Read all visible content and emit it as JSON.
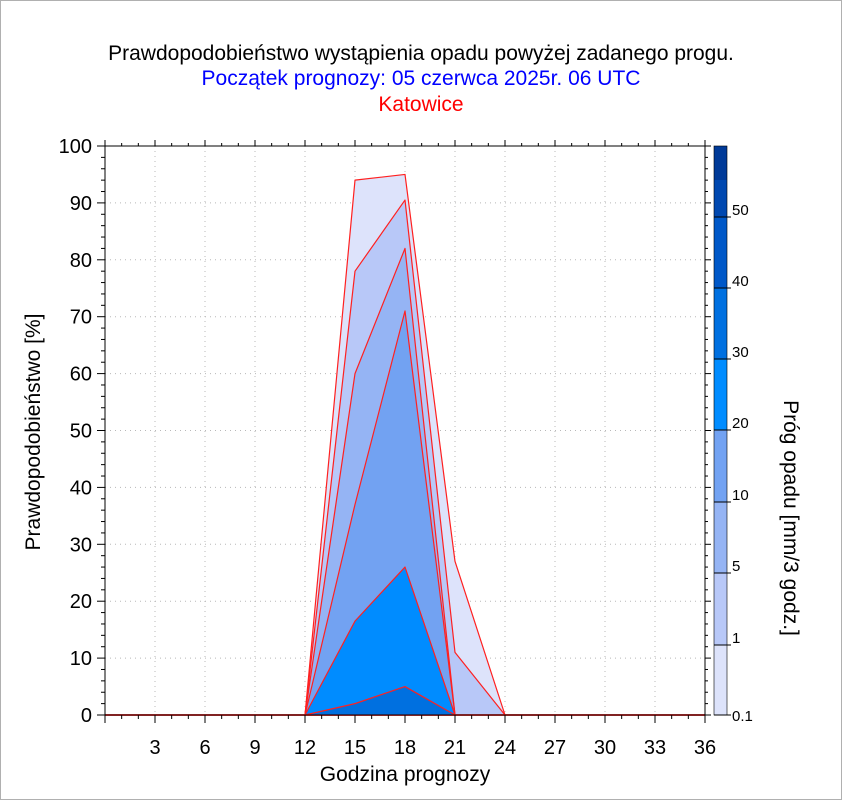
{
  "chart_data": {
    "type": "area",
    "title": "Prawdopodobieństwo wystąpienia opadu powyżej zadanego progu.",
    "subtitle": "Początek prognozy: 05 czerwca 2025r. 06 UTC",
    "location": "Katowice",
    "xlabel": "Godzina prognozy",
    "ylabel": "Prawdopodobieństwo [%]",
    "colorbar_label": "Próg opadu [mm/3 godz.]",
    "xlim": [
      0,
      36
    ],
    "ylim": [
      0,
      100
    ],
    "x_ticks": [
      "3",
      "6",
      "9",
      "12",
      "15",
      "18",
      "21",
      "24",
      "27",
      "30",
      "33",
      "36"
    ],
    "y_ticks": [
      "0",
      "10",
      "20",
      "30",
      "40",
      "50",
      "60",
      "70",
      "80",
      "90",
      "100"
    ],
    "colorbar_ticks": [
      "0.1",
      "1",
      "5",
      "10",
      "20",
      "30",
      "40",
      "50"
    ],
    "grid": true,
    "x": [
      0,
      3,
      6,
      9,
      12,
      15,
      18,
      21,
      24,
      27,
      30,
      33,
      36
    ],
    "series": [
      {
        "threshold": "0.1",
        "color": "#dde3fb",
        "values": [
          0,
          0,
          0,
          0,
          0,
          94,
          95,
          27,
          0,
          0,
          0,
          0,
          0
        ]
      },
      {
        "threshold": "1",
        "color": "#b8c8f8",
        "values": [
          0,
          0,
          0,
          0,
          0,
          78,
          90.5,
          11,
          0,
          0,
          0,
          0,
          0
        ]
      },
      {
        "threshold": "5",
        "color": "#95b4f4",
        "values": [
          0,
          0,
          0,
          0,
          0,
          60,
          82,
          0,
          0,
          0,
          0,
          0,
          0
        ]
      },
      {
        "threshold": "10",
        "color": "#72a2f2",
        "values": [
          0,
          0,
          0,
          0,
          0,
          37,
          71,
          0,
          0,
          0,
          0,
          0,
          0
        ]
      },
      {
        "threshold": "20",
        "color": "#008cff",
        "values": [
          0,
          0,
          0,
          0,
          0,
          16.5,
          26,
          0,
          0,
          0,
          0,
          0,
          0
        ]
      },
      {
        "threshold": "30",
        "color": "#0070e0",
        "values": [
          0,
          0,
          0,
          0,
          0,
          2,
          5,
          0,
          0,
          0,
          0,
          0,
          0
        ]
      }
    ],
    "colorbar_colors": [
      "#dde3fb",
      "#b8c8f8",
      "#95b4f4",
      "#72a2f2",
      "#008cff",
      "#0070e0",
      "#0058c8",
      "#0048b0",
      "#003a98"
    ],
    "line_color": "#ff2020"
  }
}
